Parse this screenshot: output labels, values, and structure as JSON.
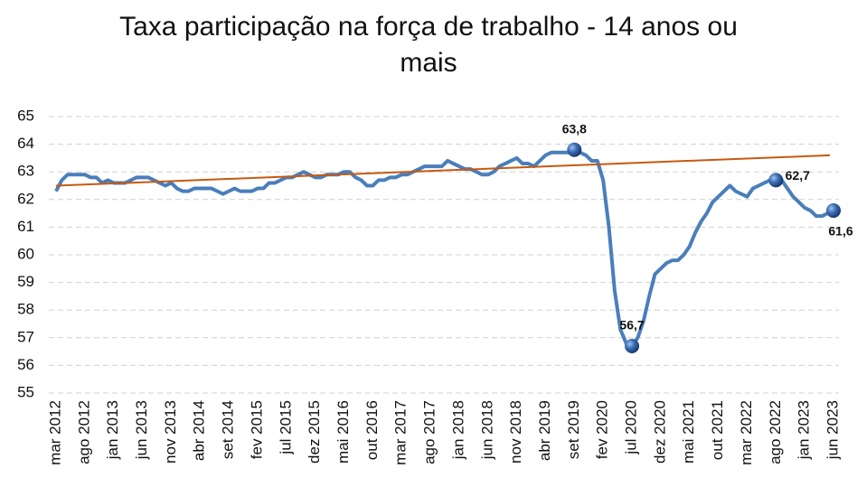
{
  "chart_data": {
    "type": "line",
    "title": "Taxa participação na força de trabalho - 14 anos ou mais",
    "categories": [
      "mar 2012",
      null,
      null,
      null,
      null,
      "ago 2012",
      null,
      null,
      null,
      null,
      "jan 2013",
      null,
      null,
      null,
      null,
      "jun 2013",
      null,
      null,
      null,
      null,
      "nov 2013",
      null,
      null,
      null,
      null,
      "abr 2014",
      null,
      null,
      null,
      null,
      "set 2014",
      null,
      null,
      null,
      null,
      "fev 2015",
      null,
      null,
      null,
      null,
      "jul 2015",
      null,
      null,
      null,
      null,
      "dez 2015",
      null,
      null,
      null,
      null,
      "mai 2016",
      null,
      null,
      null,
      null,
      "out 2016",
      null,
      null,
      null,
      null,
      "mar 2017",
      null,
      null,
      null,
      null,
      "ago 2017",
      null,
      null,
      null,
      null,
      "jan 2018",
      null,
      null,
      null,
      null,
      "jun 2018",
      null,
      null,
      null,
      null,
      "nov 2018",
      null,
      null,
      null,
      null,
      "abr 2019",
      null,
      null,
      null,
      null,
      "set 2019",
      null,
      null,
      null,
      null,
      "fev 2020",
      null,
      null,
      null,
      null,
      "jul 2020",
      null,
      null,
      null,
      null,
      "dez 2020",
      null,
      null,
      null,
      null,
      "mai 2021",
      null,
      null,
      null,
      null,
      "out 2021",
      null,
      null,
      null,
      null,
      "mar 2022",
      null,
      null,
      null,
      null,
      "ago 2022",
      null,
      null,
      null,
      null,
      "jan 2023",
      null,
      null,
      null,
      null,
      "jun 2023"
    ],
    "series": [
      {
        "color": "#4a7ebb",
        "values": [
          62.3,
          62.7,
          62.9,
          62.9,
          62.9,
          62.9,
          62.8,
          62.8,
          62.6,
          62.7,
          62.6,
          62.6,
          62.6,
          62.7,
          62.8,
          62.8,
          62.8,
          62.7,
          62.6,
          62.5,
          62.6,
          62.4,
          62.3,
          62.3,
          62.4,
          62.4,
          62.4,
          62.4,
          62.3,
          62.2,
          62.3,
          62.4,
          62.3,
          62.3,
          62.3,
          62.4,
          62.4,
          62.6,
          62.6,
          62.7,
          62.8,
          62.8,
          62.9,
          63.0,
          62.9,
          62.8,
          62.8,
          62.9,
          62.9,
          62.9,
          63.0,
          63.0,
          62.8,
          62.7,
          62.5,
          62.5,
          62.7,
          62.7,
          62.8,
          62.8,
          62.9,
          62.9,
          63.0,
          63.1,
          63.2,
          63.2,
          63.2,
          63.2,
          63.4,
          63.3,
          63.2,
          63.1,
          63.1,
          63.0,
          62.9,
          62.9,
          63.0,
          63.2,
          63.3,
          63.4,
          63.5,
          63.3,
          63.3,
          63.2,
          63.4,
          63.6,
          63.7,
          63.7,
          63.7,
          63.7,
          63.8,
          63.7,
          63.6,
          63.4,
          63.4,
          62.7,
          61.0,
          58.7,
          57.3,
          56.8,
          56.7,
          57.0,
          57.6,
          58.5,
          59.3,
          59.5,
          59.7,
          59.8,
          59.8,
          60.0,
          60.3,
          60.8,
          61.2,
          61.5,
          61.9,
          62.1,
          62.3,
          62.5,
          62.3,
          62.2,
          62.1,
          62.4,
          62.5,
          62.6,
          62.7,
          62.7,
          62.7,
          62.4,
          62.1,
          61.9,
          61.7,
          61.6,
          61.4,
          61.4,
          61.5,
          61.6
        ],
        "value_labels": [
          null,
          null,
          null,
          null,
          null,
          null,
          null,
          null,
          null,
          null,
          null,
          null,
          null,
          null,
          null,
          null,
          null,
          null,
          null,
          null,
          null,
          null,
          null,
          null,
          null,
          null,
          null,
          null,
          null,
          null,
          null,
          null,
          null,
          null,
          null,
          null,
          null,
          null,
          null,
          null,
          null,
          null,
          null,
          null,
          null,
          null,
          null,
          null,
          null,
          null,
          null,
          null,
          null,
          null,
          null,
          null,
          null,
          null,
          null,
          null,
          null,
          null,
          null,
          null,
          null,
          null,
          null,
          null,
          null,
          null,
          null,
          null,
          null,
          null,
          null,
          null,
          null,
          null,
          null,
          null,
          null,
          null,
          null,
          null,
          null,
          null,
          null,
          null,
          null,
          null,
          "63,8",
          null,
          null,
          null,
          null,
          null,
          null,
          null,
          null,
          null,
          "56,7",
          null,
          null,
          null,
          null,
          null,
          null,
          null,
          null,
          null,
          null,
          null,
          null,
          null,
          null,
          null,
          null,
          null,
          null,
          null,
          null,
          null,
          null,
          null,
          null,
          "62,7",
          null,
          null,
          null,
          null,
          null,
          null,
          null,
          null,
          null,
          "61,6"
        ]
      }
    ],
    "trendline": {
      "color": "#c55a11",
      "start": 62.5,
      "end": 63.6
    },
    "ylim": [
      55,
      65
    ],
    "yticks": [
      55,
      56,
      57,
      58,
      59,
      60,
      61,
      62,
      63,
      64,
      65
    ],
    "grid": true
  }
}
